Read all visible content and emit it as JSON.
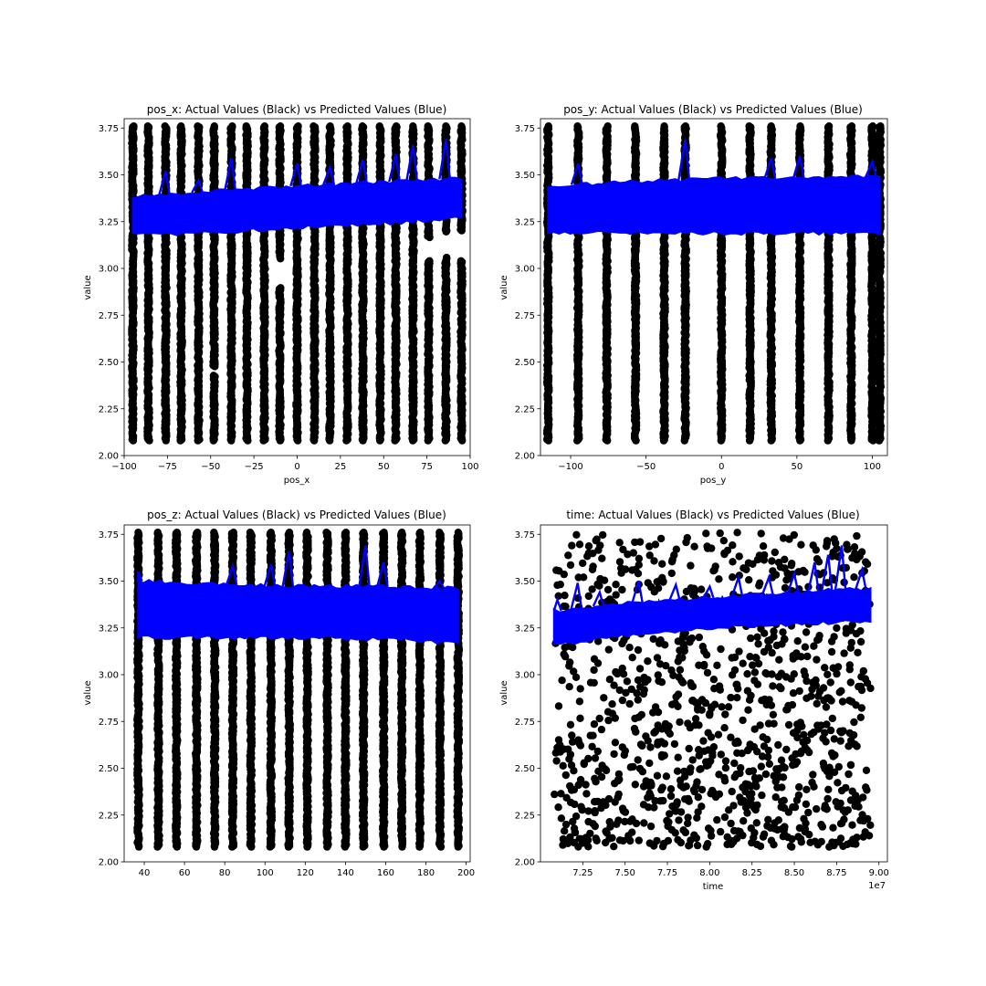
{
  "chart_data": [
    {
      "type": "scatter",
      "title": "pos_x: Actual Values (Black) vs Predicted Values (Blue)",
      "xlabel": "pos_x",
      "ylabel": "value",
      "xlim": [
        -100,
        100
      ],
      "ylim": [
        2.0,
        3.8
      ],
      "xticks": [
        -100,
        -75,
        -50,
        -25,
        0,
        25,
        50,
        75,
        100
      ],
      "yticks": [
        2.0,
        2.25,
        2.5,
        2.75,
        3.0,
        3.25,
        3.5,
        3.75
      ],
      "grid": false,
      "series": [
        {
          "kind": "scatter",
          "color": "#000000",
          "distribution": "columns",
          "x": [
            -95,
            -86,
            -76,
            -67,
            -57,
            -48,
            -38,
            -29,
            -19,
            -10,
            0,
            10,
            19,
            29,
            38,
            48,
            57,
            67,
            76,
            86,
            95
          ],
          "y_range": [
            2.08,
            3.76
          ],
          "gaps": [
            [
              -48,
              2.43,
              2.47
            ],
            [
              -10,
              2.9,
              3.05
            ],
            [
              76,
              3.04,
              3.16
            ],
            [
              86,
              3.06,
              3.19
            ],
            [
              95,
              3.04,
              3.2
            ]
          ]
        },
        {
          "kind": "line-band",
          "color": "#0000ff",
          "x": [
            -95,
            -50,
            0,
            50,
            95
          ],
          "y_low": [
            3.18,
            3.19,
            3.22,
            3.24,
            3.27
          ],
          "y_high": [
            3.38,
            3.41,
            3.44,
            3.46,
            3.48
          ],
          "spikes": [
            [
              -76,
              3.52
            ],
            [
              -57,
              3.47
            ],
            [
              -38,
              3.59
            ],
            [
              0,
              3.56
            ],
            [
              19,
              3.54
            ],
            [
              38,
              3.58
            ],
            [
              57,
              3.61
            ],
            [
              67,
              3.66
            ],
            [
              86,
              3.69
            ]
          ]
        }
      ]
    },
    {
      "type": "scatter",
      "title": "pos_y: Actual Values (Black) vs Predicted Values (Blue)",
      "xlabel": "pos_y",
      "ylabel": "value",
      "xlim": [
        -120,
        110
      ],
      "ylim": [
        2.0,
        3.8
      ],
      "xticks": [
        -100,
        -50,
        0,
        50,
        100
      ],
      "yticks": [
        2.0,
        2.25,
        2.5,
        2.75,
        3.0,
        3.25,
        3.5,
        3.75
      ],
      "grid": false,
      "series": [
        {
          "kind": "scatter",
          "color": "#000000",
          "distribution": "columns",
          "x": [
            -115,
            -95,
            -76,
            -57,
            -38,
            -24,
            0,
            19,
            33,
            52,
            71,
            86,
            100,
            105
          ],
          "y_range": [
            2.08,
            3.76
          ],
          "gaps": []
        },
        {
          "kind": "line-band",
          "color": "#0000ff",
          "x": [
            -115,
            -60,
            0,
            60,
            105
          ],
          "y_low": [
            3.19,
            3.19,
            3.19,
            3.19,
            3.19
          ],
          "y_high": [
            3.44,
            3.46,
            3.48,
            3.48,
            3.49
          ],
          "spikes": [
            [
              -95,
              3.56
            ],
            [
              -24,
              3.69
            ],
            [
              33,
              3.59
            ],
            [
              52,
              3.6
            ],
            [
              100,
              3.57
            ]
          ]
        }
      ]
    },
    {
      "type": "scatter",
      "title": "pos_z: Actual Values (Black) vs Predicted Values (Blue)",
      "xlabel": "",
      "ylabel": "value",
      "xlim": [
        30,
        202
      ],
      "ylim": [
        2.0,
        3.8
      ],
      "xticks": [
        40,
        60,
        80,
        100,
        120,
        140,
        160,
        180,
        200
      ],
      "yticks": [
        2.0,
        2.25,
        2.5,
        2.75,
        3.0,
        3.25,
        3.5,
        3.75
      ],
      "grid": false,
      "series": [
        {
          "kind": "scatter",
          "color": "#000000",
          "distribution": "columns",
          "x": [
            37,
            47,
            56,
            66,
            75,
            84,
            93,
            103,
            112,
            121,
            131,
            140,
            149,
            159,
            168,
            177,
            187,
            196
          ],
          "y_range": [
            2.08,
            3.76
          ],
          "gaps": []
        },
        {
          "kind": "line-band",
          "color": "#0000ff",
          "x": [
            37,
            80,
            120,
            160,
            196
          ],
          "y_low": [
            3.2,
            3.2,
            3.2,
            3.19,
            3.17
          ],
          "y_high": [
            3.5,
            3.48,
            3.47,
            3.47,
            3.46
          ],
          "spikes": [
            [
              37,
              3.55
            ],
            [
              84,
              3.58
            ],
            [
              103,
              3.59
            ],
            [
              112,
              3.66
            ],
            [
              150,
              3.69
            ],
            [
              159,
              3.6
            ],
            [
              187,
              3.5
            ]
          ]
        }
      ]
    },
    {
      "type": "scatter",
      "title": "time: Actual Values (Black) vs Predicted Values (Blue)",
      "xlabel": "time",
      "ylabel": "value",
      "x_offset_label": "1e7",
      "xlim": [
        7.0,
        9.05
      ],
      "ylim": [
        2.0,
        3.8
      ],
      "xticks": [
        7.25,
        7.5,
        7.75,
        8.0,
        8.25,
        8.5,
        8.75,
        9.0
      ],
      "xtick_labels": [
        "7.25",
        "7.50",
        "7.75",
        "8.00",
        "8.25",
        "8.50",
        "8.75",
        "9.00"
      ],
      "yticks": [
        2.0,
        2.25,
        2.5,
        2.75,
        3.0,
        3.25,
        3.5,
        3.75
      ],
      "grid": false,
      "series": [
        {
          "kind": "scatter",
          "color": "#000000",
          "distribution": "uniform",
          "x_range": [
            7.08,
            8.95
          ],
          "y_range": [
            2.08,
            3.76
          ],
          "approx_count": 1100,
          "denser_low": true
        },
        {
          "kind": "line-band",
          "color": "#0000ff",
          "x": [
            7.08,
            7.5,
            8.0,
            8.5,
            8.95
          ],
          "y_low": [
            3.16,
            3.21,
            3.25,
            3.27,
            3.29
          ],
          "y_high": [
            3.34,
            3.38,
            3.41,
            3.44,
            3.46
          ],
          "spikes": [
            [
              7.1,
              3.4
            ],
            [
              7.22,
              3.49
            ],
            [
              7.35,
              3.44
            ],
            [
              7.58,
              3.5
            ],
            [
              7.8,
              3.48
            ],
            [
              8.0,
              3.47
            ],
            [
              8.17,
              3.52
            ],
            [
              8.35,
              3.52
            ],
            [
              8.5,
              3.54
            ],
            [
              8.62,
              3.6
            ],
            [
              8.7,
              3.64
            ],
            [
              8.78,
              3.69
            ],
            [
              8.9,
              3.56
            ]
          ]
        }
      ]
    }
  ],
  "colors": {
    "actual": "#000000",
    "predicted": "#0000ff"
  }
}
